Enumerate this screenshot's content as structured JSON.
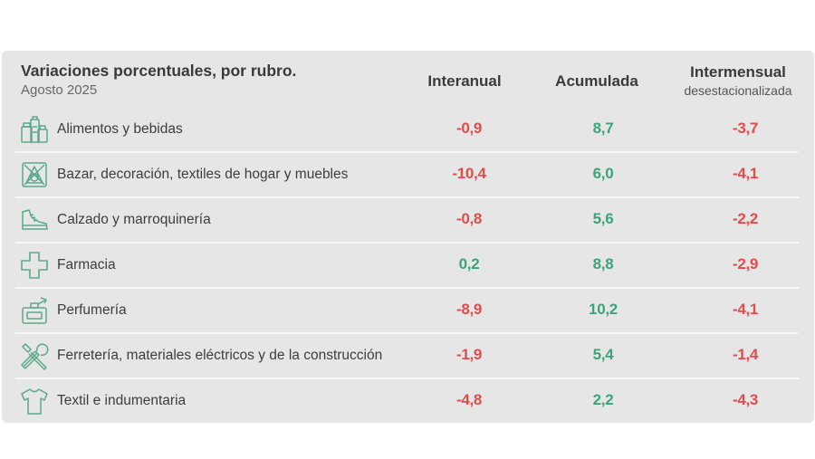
{
  "header": {
    "title": "Variaciones porcentuales, por rubro.",
    "subtitle": "Agosto 2025",
    "col_interanual": "Interanual",
    "col_acumulada": "Acumulada",
    "col_intermensual": "Intermensual",
    "col_intermensual_sub": "desestacionalizada"
  },
  "colors": {
    "negative": "#e24c4c",
    "positive": "#3aa57a",
    "icon": "#5aa888",
    "card_background": "#e6e6e6"
  },
  "chart_data": {
    "type": "table",
    "title": "Variaciones porcentuales, por rubro.",
    "subtitle": "Agosto 2025",
    "columns": [
      "Interanual",
      "Acumulada",
      "Intermensual desestacionalizada"
    ],
    "rows": [
      {
        "icon": "groceries-icon",
        "label": "Alimentos y bebidas",
        "interanual": "-0,9",
        "acumulada": "8,7",
        "intermensual": "-3,7"
      },
      {
        "icon": "home-decor-icon",
        "label": "Bazar, decoración, textiles de hogar y muebles",
        "interanual": "-10,4",
        "acumulada": "6,0",
        "intermensual": "-4,1"
      },
      {
        "icon": "shoe-icon",
        "label": "Calzado y marroquinería",
        "interanual": "-0,8",
        "acumulada": "5,6",
        "intermensual": "-2,2"
      },
      {
        "icon": "pharmacy-cross-icon",
        "label": "Farmacia",
        "interanual": "0,2",
        "acumulada": "8,8",
        "intermensual": "-2,9"
      },
      {
        "icon": "perfume-icon",
        "label": "Perfumería",
        "interanual": "-8,9",
        "acumulada": "10,2",
        "intermensual": "-4,1"
      },
      {
        "icon": "tools-icon",
        "label": "Ferretería, materiales eléctricos y de la construcción",
        "interanual": "-1,9",
        "acumulada": "5,4",
        "intermensual": "-1,4"
      },
      {
        "icon": "shirt-icon",
        "label": "Textil e indumentaria",
        "interanual": "-4,8",
        "acumulada": "2,2",
        "intermensual": "-4,3"
      }
    ]
  }
}
